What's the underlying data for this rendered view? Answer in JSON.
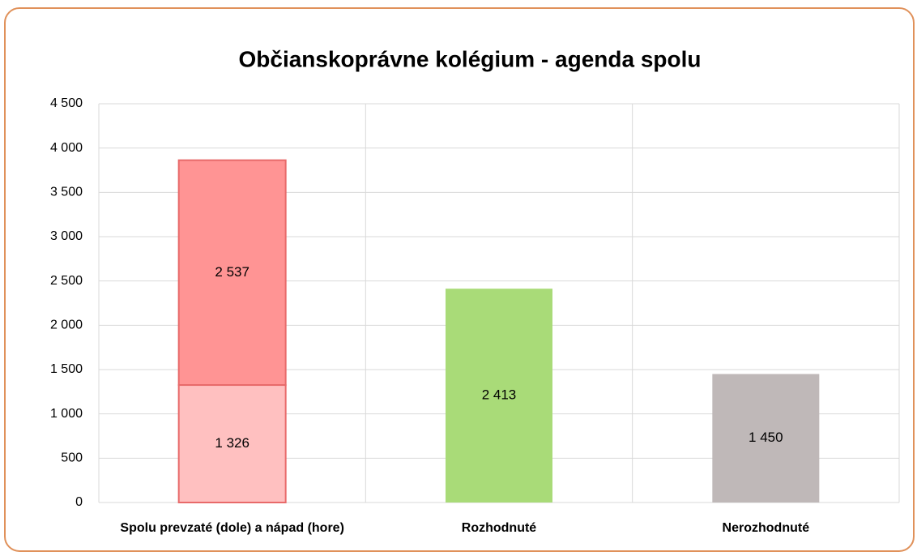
{
  "chart_data": {
    "type": "stacked_bar",
    "title": "Občianskoprávne kolégium - agenda spolu",
    "categories": [
      "Spolu prevzaté (dole) a nápad (hore)",
      "Rozhodnuté",
      "Nerozhodnuté"
    ],
    "series": [
      {
        "colors": [
          "#ffc0c0",
          "#a9db78",
          "#bfb8b8"
        ],
        "values": [
          1326,
          2413,
          1450
        ],
        "value_labels": [
          "1 326",
          "2 413",
          "1 450"
        ]
      },
      {
        "color": "#ff9494",
        "values": [
          2537,
          null,
          null
        ],
        "value_labels": [
          "2 537",
          null,
          null
        ]
      }
    ],
    "ylim": [
      0,
      4500
    ],
    "yticks": [
      0,
      500,
      {
        "value": 1000,
        "label": "1 000"
      },
      {
        "value": 1500,
        "label": "1 500"
      },
      {
        "value": 2000,
        "label": "2 000"
      },
      {
        "value": 2500,
        "label": "2 500"
      },
      {
        "value": 3000,
        "label": "3 000"
      },
      {
        "value": 3500,
        "label": "3 500"
      },
      {
        "value": 4000,
        "label": "4 000"
      },
      {
        "value": 4500,
        "label": "4 500"
      }
    ],
    "grid": true
  }
}
